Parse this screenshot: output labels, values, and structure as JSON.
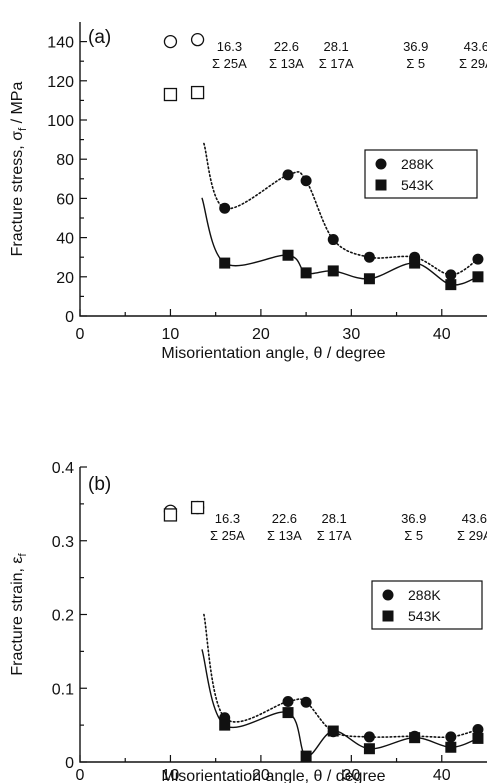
{
  "chart_data": [
    {
      "type": "scatter",
      "panel_label": "(a)",
      "xlabel": "Misorientation angle, θ / degree",
      "ylabel": "Fracture stress, σf / MPa",
      "ylabel_main": "Fracture stress, σ",
      "ylabel_sub": "f",
      "ylabel_unit": " / MPa",
      "xlim": [
        0,
        45
      ],
      "ylim": [
        0,
        150
      ],
      "xticks": [
        0,
        10,
        20,
        30,
        40
      ],
      "yticks": [
        0,
        20,
        40,
        60,
        80,
        100,
        120,
        140
      ],
      "ytick_labels": [
        "0",
        "20",
        "40",
        "60",
        "80",
        "100",
        "120",
        "140"
      ],
      "xtick_labels": [
        "0",
        "10",
        "20",
        "30",
        "40"
      ],
      "legend": {
        "position": "right-middle",
        "entries": [
          "288K",
          "543K"
        ]
      },
      "annotations": [
        {
          "angle": 16.3,
          "angle_label": "16.3",
          "sigma_label": "Σ 25A"
        },
        {
          "angle": 22.6,
          "angle_label": "22.6",
          "sigma_label": "Σ 13A"
        },
        {
          "angle": 28.1,
          "angle_label": "28.1",
          "sigma_label": "Σ 17A"
        },
        {
          "angle": 36.9,
          "angle_label": "36.9",
          "sigma_label": "Σ 5"
        },
        {
          "angle": 43.6,
          "angle_label": "43.6",
          "sigma_label": "Σ 29A"
        }
      ],
      "series": [
        {
          "name": "288K",
          "marker": "filled-circle",
          "line": "dotted",
          "x": [
            16,
            23,
            25,
            28,
            32,
            37,
            41,
            44
          ],
          "y": [
            55,
            72,
            69,
            39,
            30,
            30,
            21,
            29
          ]
        },
        {
          "name": "543K",
          "marker": "filled-square",
          "line": "solid",
          "x": [
            16,
            23,
            25,
            28,
            32,
            37,
            41,
            44
          ],
          "y": [
            27,
            31,
            22,
            23,
            19,
            27,
            16,
            20
          ]
        },
        {
          "marker": "open-circle",
          "x": [
            10,
            13
          ],
          "y": [
            140,
            141
          ]
        },
        {
          "marker": "open-square",
          "x": [
            10,
            13
          ],
          "y": [
            113,
            114
          ]
        }
      ]
    },
    {
      "type": "scatter",
      "panel_label": "(b)",
      "xlabel": "Misorientation angle, θ / degree",
      "ylabel": "Fracture strain, εf",
      "ylabel_main": "Fracture strain, ε",
      "ylabel_sub": "f",
      "ylabel_unit": "",
      "xlim": [
        0,
        45
      ],
      "ylim": [
        0,
        0.4
      ],
      "xticks": [
        0,
        10,
        20,
        30,
        40
      ],
      "yticks": [
        0,
        0.1,
        0.2,
        0.3,
        0.4
      ],
      "ytick_labels": [
        "0",
        "0.1",
        "0.2",
        "0.3",
        "0.4"
      ],
      "xtick_labels": [
        "0",
        "10",
        "20",
        "30",
        "40"
      ],
      "legend": {
        "position": "right-middle",
        "entries": [
          "288K",
          "543K"
        ]
      },
      "annotations": [
        {
          "angle": 16.3,
          "angle_label": "16.3",
          "sigma_label": "Σ 25A"
        },
        {
          "angle": 22.6,
          "angle_label": "22.6",
          "sigma_label": "Σ 13A"
        },
        {
          "angle": 28.1,
          "angle_label": "28.1",
          "sigma_label": "Σ 17A"
        },
        {
          "angle": 36.9,
          "angle_label": "36.9",
          "sigma_label": "Σ 5"
        },
        {
          "angle": 43.6,
          "angle_label": "43.6",
          "sigma_label": "Σ 29A"
        }
      ],
      "series": [
        {
          "name": "288K",
          "marker": "filled-circle",
          "line": "dotted",
          "x": [
            16,
            23,
            25,
            28,
            32,
            37,
            41,
            44
          ],
          "y": [
            0.06,
            0.082,
            0.081,
            0.041,
            0.034,
            0.035,
            0.034,
            0.044
          ]
        },
        {
          "name": "543K",
          "marker": "filled-square",
          "line": "solid",
          "x": [
            16,
            23,
            25,
            28,
            32,
            37,
            41,
            44
          ],
          "y": [
            0.05,
            0.067,
            0.008,
            0.042,
            0.018,
            0.033,
            0.02,
            0.032
          ]
        },
        {
          "marker": "open-circle",
          "x": [
            10,
            13
          ],
          "y": [
            0.34,
            0.345
          ]
        },
        {
          "marker": "open-square",
          "x": [
            10,
            13
          ],
          "y": [
            0.335,
            0.345
          ]
        }
      ]
    }
  ]
}
